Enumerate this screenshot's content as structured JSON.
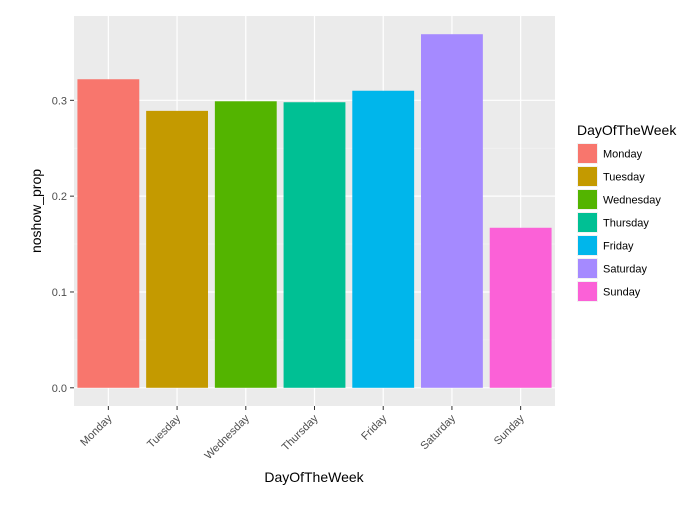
{
  "chart_data": {
    "type": "bar",
    "categories": [
      "Monday",
      "Tuesday",
      "Wednesday",
      "Thursday",
      "Friday",
      "Saturday",
      "Sunday"
    ],
    "values": [
      0.322,
      0.289,
      0.299,
      0.298,
      0.31,
      0.369,
      0.167
    ],
    "colors": [
      "#F8766D",
      "#C49A00",
      "#53B400",
      "#00C094",
      "#00B6EB",
      "#A58AFF",
      "#FB61D7"
    ],
    "title": "",
    "xlabel": "DayOfTheWeek",
    "ylabel": "noshow_prop",
    "ylim": [
      -0.019,
      0.388
    ],
    "yticks": [
      0.0,
      0.1,
      0.2,
      0.3
    ],
    "ytick_labels": [
      "0.0",
      "0.1",
      "0.2",
      "0.3"
    ],
    "grid": true,
    "legend": {
      "title": "DayOfTheWeek",
      "position": "right",
      "entries": [
        "Monday",
        "Tuesday",
        "Wednesday",
        "Thursday",
        "Friday",
        "Saturday",
        "Sunday"
      ]
    }
  }
}
